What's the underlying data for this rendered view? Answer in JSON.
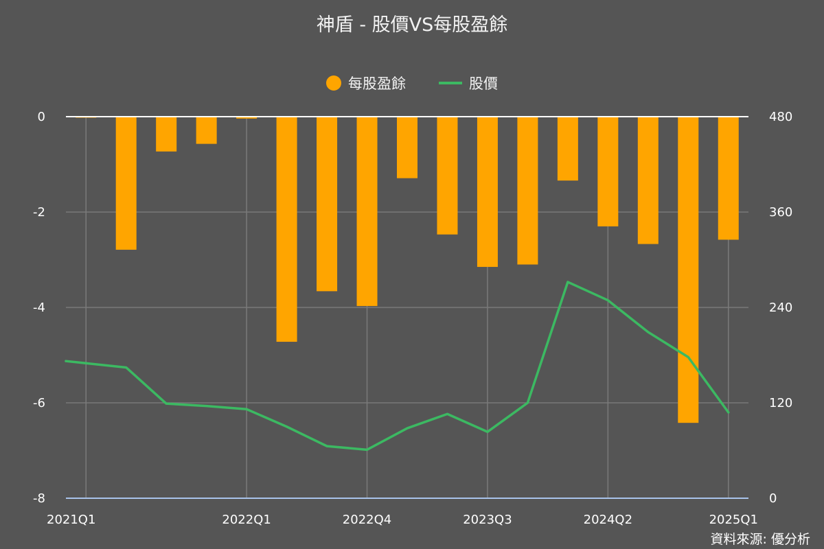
{
  "chart_data": {
    "type": "bar",
    "title": "神盾 - 股價VS每股盈餘",
    "source": "資料來源: 優分析",
    "x": [
      "2021Q1",
      "2021Q2",
      "2021Q3",
      "2021Q4",
      "2022Q1",
      "2022Q2",
      "2022Q3",
      "2022Q4",
      "2023Q1",
      "2023Q2",
      "2023Q3",
      "2023Q4",
      "2024Q1",
      "2024Q2",
      "2024Q3",
      "2024Q4",
      "2025Q1"
    ],
    "x_tick_labels": [
      "2021Q1",
      "2022Q1",
      "2022Q4",
      "2023Q3",
      "2024Q2",
      "2025Q1"
    ],
    "series": [
      {
        "name": "每股盈餘",
        "type": "bar",
        "axis": "left",
        "color": "#FFA500",
        "values": [
          -0.01,
          -2.79,
          -0.73,
          -0.57,
          -0.04,
          -4.72,
          -3.66,
          -3.97,
          -1.29,
          -2.47,
          -3.15,
          -3.1,
          -1.34,
          -2.3,
          -2.67,
          -6.42,
          -2.58
        ]
      },
      {
        "name": "股價",
        "type": "line",
        "axis": "right",
        "color": "#3CB962",
        "values": [
          172.5,
          164.5,
          119,
          116,
          112,
          90,
          65.5,
          61,
          88,
          106,
          83.5,
          120,
          272,
          249,
          209,
          177.5,
          108
        ]
      }
    ],
    "y_left": {
      "min": -8,
      "max": 0,
      "ticks": [
        0,
        -2,
        -4,
        -6,
        -8
      ]
    },
    "y_right": {
      "min": 0,
      "max": 480,
      "ticks": [
        480,
        360,
        240,
        120,
        0
      ]
    },
    "grid": true,
    "legend_position": "top-center"
  }
}
